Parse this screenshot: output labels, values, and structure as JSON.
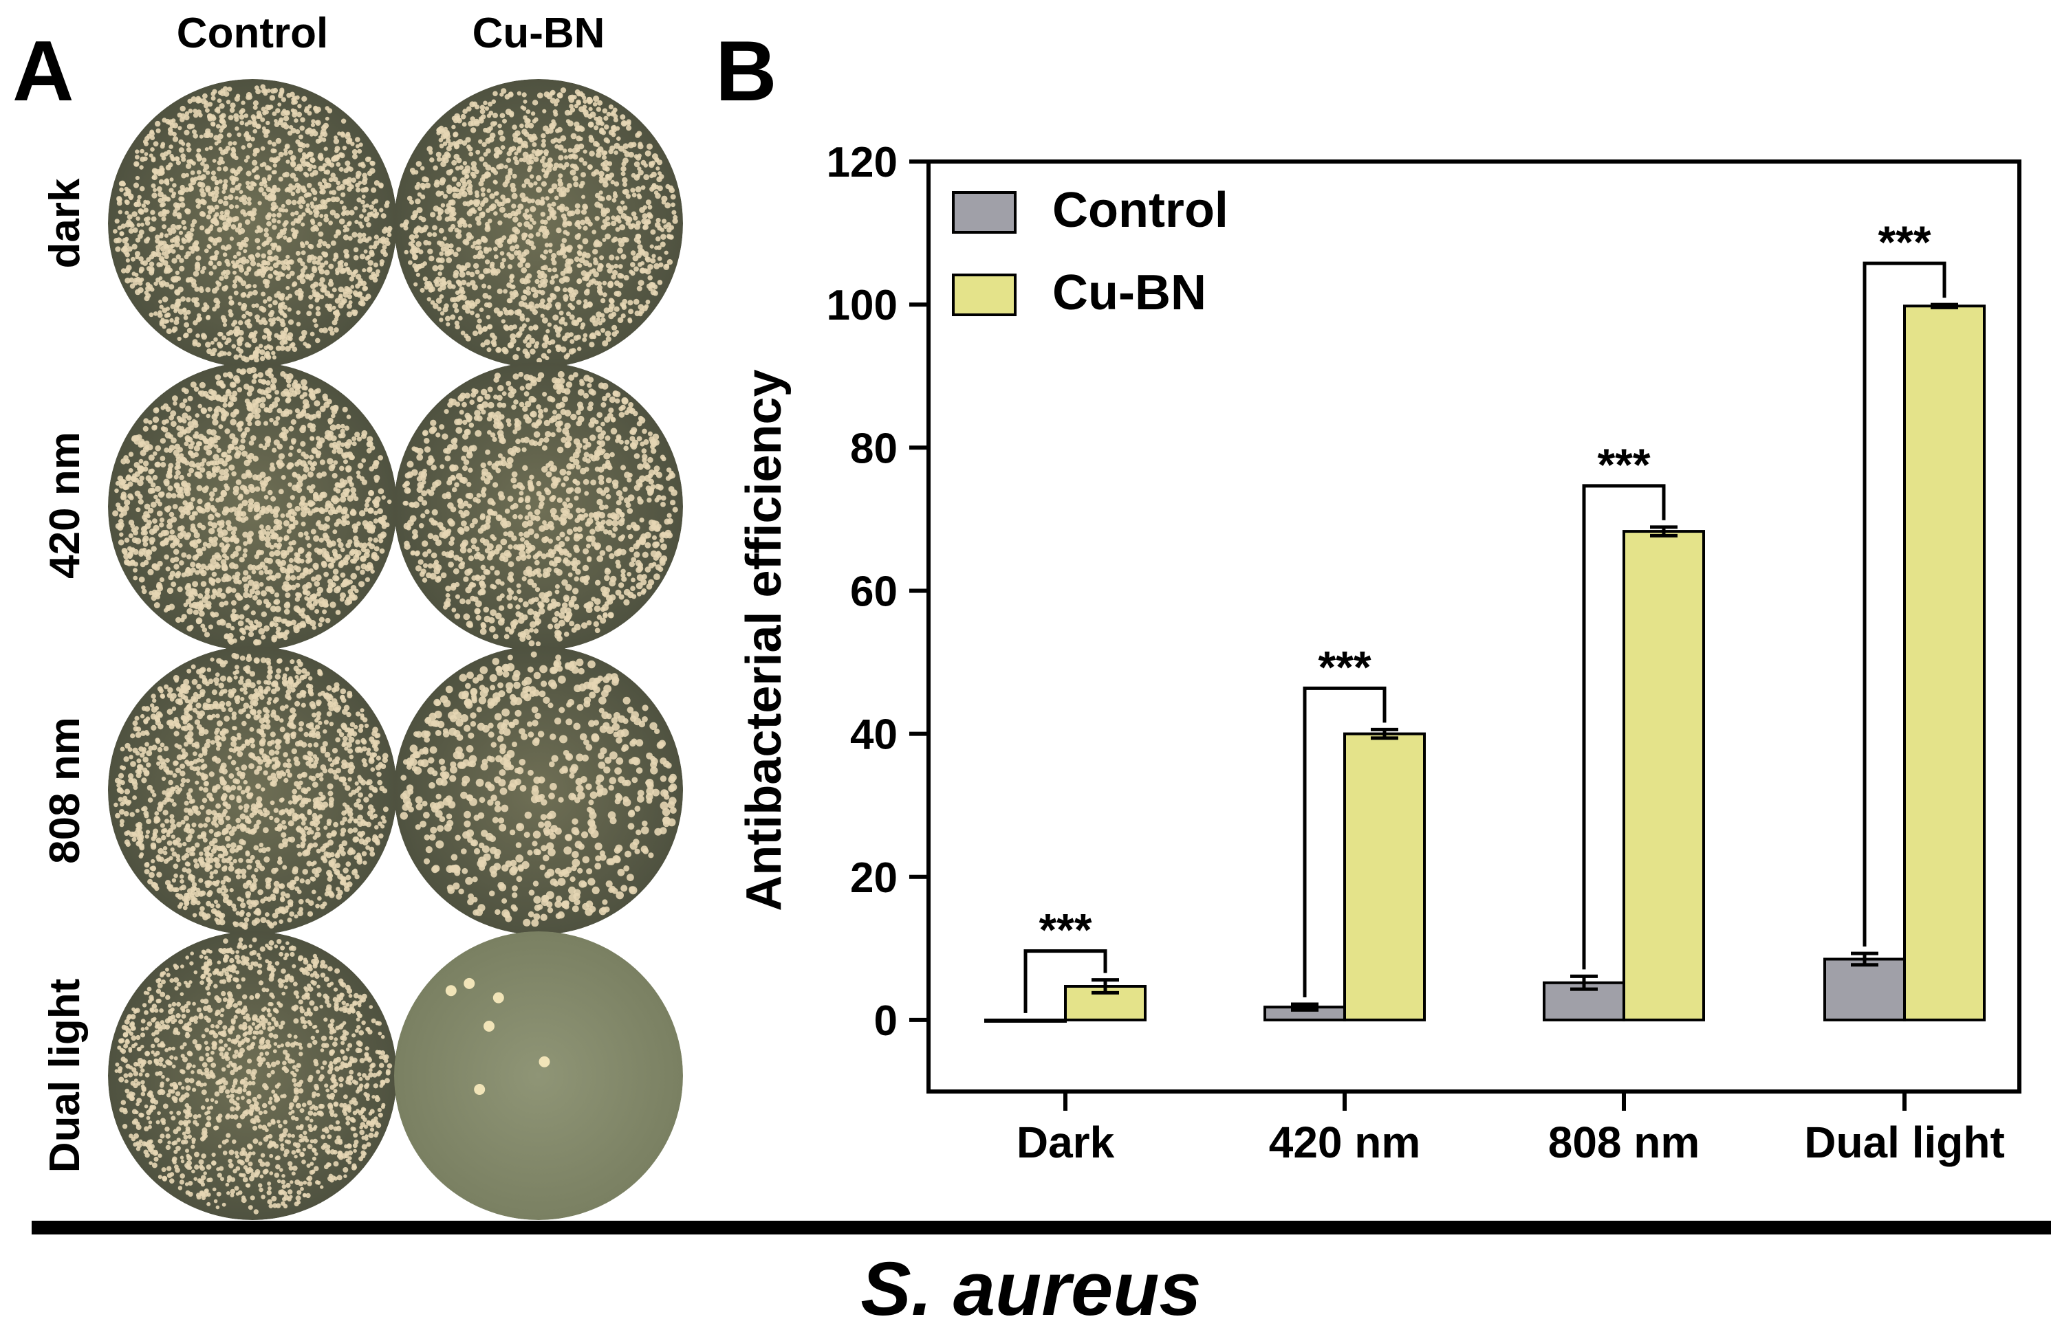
{
  "panel_a": {
    "label": "A",
    "columns": [
      "Control",
      "Cu-BN"
    ],
    "rows": [
      "dark",
      "420 nm",
      "808 nm",
      "Dual light"
    ],
    "colors": {
      "agar_dark": "#6f6f55",
      "agar_clear": "#8f9576",
      "colony": "#e6d6b4"
    }
  },
  "panel_b": {
    "label": "B"
  },
  "organism_label": "S. aureus",
  "chart_data": {
    "type": "bar",
    "ylabel": "Antibacterial efficiency",
    "xlabel": "",
    "ylim": [
      -10,
      120
    ],
    "yticks": [
      0,
      20,
      40,
      60,
      80,
      100,
      120
    ],
    "categories": [
      "Dark",
      "420 nm",
      "808 nm",
      "Dual light"
    ],
    "legend": "top-left",
    "series": [
      {
        "name": "Control",
        "color": "#a0a0a8",
        "values": [
          0,
          1.8,
          5.2,
          8.5
        ],
        "errors": [
          0,
          0.4,
          0.9,
          0.8
        ]
      },
      {
        "name": "Cu-BN",
        "color": "#e4e38a",
        "values": [
          4.7,
          40,
          68.3,
          99.8
        ],
        "errors": [
          0.9,
          0.6,
          0.6,
          0.2
        ]
      }
    ],
    "significance": [
      "***",
      "***",
      "***",
      "***"
    ]
  }
}
